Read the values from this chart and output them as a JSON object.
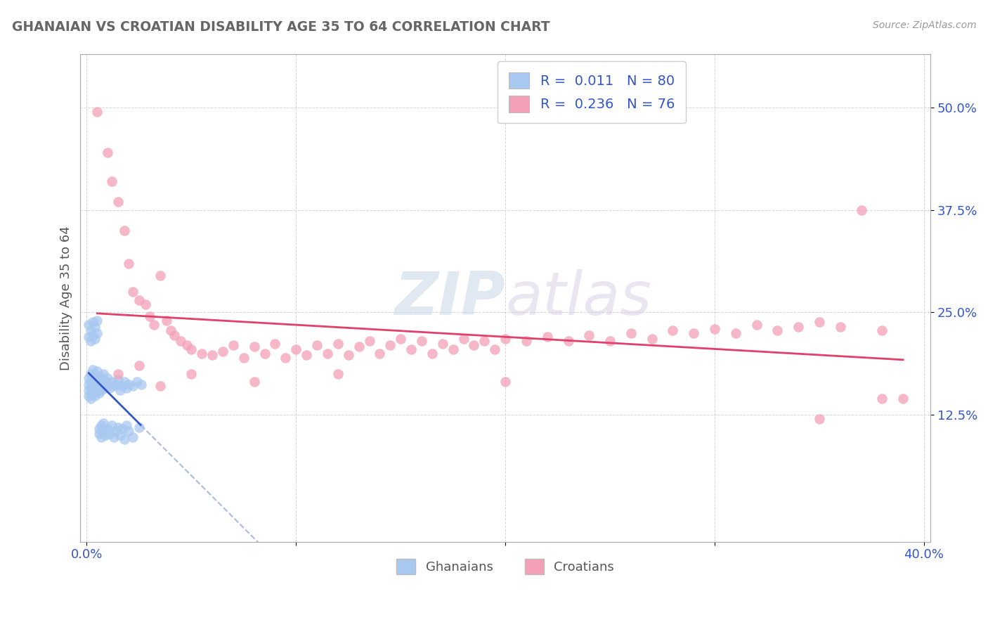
{
  "title": "GHANAIAN VS CROATIAN DISABILITY AGE 35 TO 64 CORRELATION CHART",
  "source": "Source: ZipAtlas.com",
  "ylabel": "Disability Age 35 to 64",
  "xlim": [
    -0.003,
    0.403
  ],
  "ylim": [
    -0.03,
    0.565
  ],
  "xtick_positions": [
    0.0,
    0.1,
    0.2,
    0.3,
    0.4
  ],
  "xticklabels": [
    "0.0%",
    "",
    "",
    "",
    "40.0%"
  ],
  "ytick_positions": [
    0.125,
    0.25,
    0.375,
    0.5
  ],
  "ytick_labels": [
    "12.5%",
    "25.0%",
    "37.5%",
    "50.0%"
  ],
  "ghanaian_color": "#A8C8F0",
  "croatian_color": "#F4A0B8",
  "ghanaian_line_color": "#3355CC",
  "ghanaian_line_dash_color": "#AABBDD",
  "croatian_line_color": "#E0406A",
  "legend_R1": "R =  0.011",
  "legend_N1": "N = 80",
  "legend_R2": "R =  0.236",
  "legend_N2": "N = 76",
  "bg_color": "#FFFFFF",
  "grid_color": "#CCCCCC",
  "title_color": "#666666",
  "axis_label_color": "#555555",
  "tick_color": "#3355CC",
  "watermark_color": "#D8E8F0",
  "ghanaian_x": [
    0.001,
    0.001,
    0.001,
    0.001,
    0.002,
    0.002,
    0.002,
    0.002,
    0.002,
    0.003,
    0.003,
    0.003,
    0.003,
    0.003,
    0.004,
    0.004,
    0.004,
    0.004,
    0.004,
    0.005,
    0.005,
    0.005,
    0.005,
    0.006,
    0.006,
    0.006,
    0.006,
    0.007,
    0.007,
    0.007,
    0.008,
    0.008,
    0.008,
    0.009,
    0.009,
    0.01,
    0.01,
    0.011,
    0.012,
    0.013,
    0.014,
    0.015,
    0.016,
    0.017,
    0.018,
    0.019,
    0.02,
    0.022,
    0.024,
    0.026,
    0.001,
    0.001,
    0.002,
    0.002,
    0.003,
    0.003,
    0.004,
    0.004,
    0.005,
    0.005,
    0.006,
    0.006,
    0.007,
    0.007,
    0.008,
    0.008,
    0.009,
    0.01,
    0.011,
    0.012,
    0.013,
    0.014,
    0.015,
    0.016,
    0.017,
    0.018,
    0.019,
    0.02,
    0.022,
    0.025
  ],
  "ghanaian_y": [
    0.155,
    0.148,
    0.162,
    0.17,
    0.158,
    0.165,
    0.145,
    0.175,
    0.152,
    0.168,
    0.16,
    0.172,
    0.155,
    0.18,
    0.162,
    0.158,
    0.17,
    0.148,
    0.165,
    0.155,
    0.178,
    0.16,
    0.168,
    0.152,
    0.172,
    0.165,
    0.158,
    0.162,
    0.17,
    0.155,
    0.168,
    0.16,
    0.175,
    0.158,
    0.165,
    0.162,
    0.17,
    0.158,
    0.165,
    0.16,
    0.162,
    0.168,
    0.155,
    0.16,
    0.165,
    0.158,
    0.162,
    0.16,
    0.165,
    0.162,
    0.22,
    0.235,
    0.215,
    0.228,
    0.222,
    0.238,
    0.218,
    0.232,
    0.225,
    0.24,
    0.102,
    0.108,
    0.098,
    0.112,
    0.105,
    0.115,
    0.1,
    0.108,
    0.102,
    0.112,
    0.098,
    0.105,
    0.11,
    0.1,
    0.108,
    0.095,
    0.112,
    0.105,
    0.098,
    0.11
  ],
  "croatian_x": [
    0.005,
    0.01,
    0.012,
    0.015,
    0.018,
    0.02,
    0.022,
    0.025,
    0.028,
    0.03,
    0.032,
    0.035,
    0.038,
    0.04,
    0.042,
    0.045,
    0.048,
    0.05,
    0.055,
    0.06,
    0.065,
    0.07,
    0.075,
    0.08,
    0.085,
    0.09,
    0.095,
    0.1,
    0.105,
    0.11,
    0.115,
    0.12,
    0.125,
    0.13,
    0.135,
    0.14,
    0.145,
    0.15,
    0.155,
    0.16,
    0.165,
    0.17,
    0.175,
    0.18,
    0.185,
    0.19,
    0.195,
    0.2,
    0.21,
    0.22,
    0.23,
    0.24,
    0.25,
    0.26,
    0.27,
    0.28,
    0.29,
    0.3,
    0.31,
    0.32,
    0.33,
    0.34,
    0.35,
    0.36,
    0.37,
    0.38,
    0.39,
    0.015,
    0.025,
    0.035,
    0.05,
    0.08,
    0.12,
    0.2,
    0.35,
    0.38
  ],
  "croatian_y": [
    0.495,
    0.445,
    0.41,
    0.385,
    0.35,
    0.31,
    0.275,
    0.265,
    0.26,
    0.245,
    0.235,
    0.295,
    0.24,
    0.228,
    0.222,
    0.215,
    0.21,
    0.205,
    0.2,
    0.198,
    0.202,
    0.21,
    0.195,
    0.208,
    0.2,
    0.212,
    0.195,
    0.205,
    0.198,
    0.21,
    0.2,
    0.212,
    0.198,
    0.208,
    0.215,
    0.2,
    0.21,
    0.218,
    0.205,
    0.215,
    0.2,
    0.212,
    0.205,
    0.218,
    0.21,
    0.215,
    0.205,
    0.218,
    0.215,
    0.22,
    0.215,
    0.222,
    0.215,
    0.225,
    0.218,
    0.228,
    0.225,
    0.23,
    0.225,
    0.235,
    0.228,
    0.232,
    0.238,
    0.232,
    0.375,
    0.228,
    0.145,
    0.175,
    0.185,
    0.16,
    0.175,
    0.165,
    0.175,
    0.165,
    0.12,
    0.145
  ]
}
